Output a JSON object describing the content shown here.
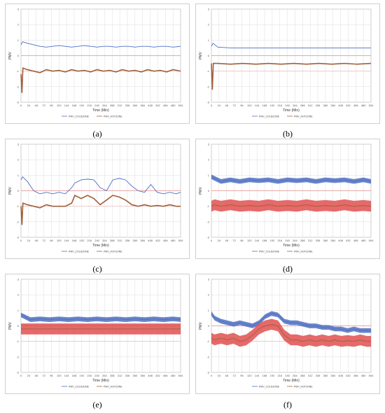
{
  "panels": [
    {
      "caption": "(a)"
    },
    {
      "caption": "(b)"
    },
    {
      "caption": "(c)"
    },
    {
      "caption": "(d)"
    },
    {
      "caption": "(e)"
    },
    {
      "caption": "(f)"
    }
  ],
  "colors": {
    "cold": "#4f6fc2",
    "hot": "#a0603a",
    "hot_band": "#e05050",
    "zero_line": "#e89090",
    "grid": "#dcdcdc"
  },
  "chart_data": [
    {
      "type": "line",
      "panel": "a",
      "xlabel": "Time (Min)",
      "ylabel": "PMV",
      "yticks": [
        3,
        2,
        1,
        0,
        -1,
        -2,
        -3
      ],
      "ylim": [
        -3,
        3
      ],
      "xlim": [
        0,
        504
      ],
      "xticks": [
        0,
        24,
        48,
        72,
        96,
        120,
        144,
        168,
        192,
        216,
        240,
        264,
        288,
        312,
        336,
        360,
        384,
        408,
        432,
        456,
        480,
        504
      ],
      "series": [
        {
          "name": "PMV_COLDZONE",
          "x": [
            0,
            5,
            20,
            40,
            60,
            80,
            100,
            120,
            140,
            160,
            180,
            200,
            220,
            240,
            260,
            280,
            300,
            320,
            340,
            360,
            380,
            400,
            420,
            440,
            460,
            480,
            504
          ],
          "y": [
            0.7,
            0.9,
            0.8,
            0.7,
            0.6,
            0.55,
            0.6,
            0.65,
            0.6,
            0.55,
            0.6,
            0.65,
            0.6,
            0.55,
            0.6,
            0.6,
            0.55,
            0.6,
            0.6,
            0.55,
            0.6,
            0.6,
            0.55,
            0.6,
            0.6,
            0.55,
            0.6
          ]
        },
        {
          "name": "PMV_HOTZONE",
          "x": [
            0,
            3,
            6,
            20,
            40,
            60,
            80,
            100,
            120,
            140,
            160,
            180,
            200,
            220,
            240,
            260,
            280,
            300,
            320,
            340,
            360,
            380,
            400,
            420,
            440,
            460,
            480,
            504
          ],
          "y": [
            -1.2,
            -2.4,
            -0.8,
            -0.9,
            -1.0,
            -1.1,
            -0.9,
            -1.0,
            -0.95,
            -1.05,
            -0.9,
            -1.0,
            -0.95,
            -1.05,
            -0.9,
            -1.0,
            -0.95,
            -1.05,
            -0.9,
            -1.0,
            -0.95,
            -1.05,
            -0.9,
            -1.0,
            -0.95,
            -1.05,
            -0.9,
            -1.0
          ]
        }
      ]
    },
    {
      "type": "line",
      "panel": "b",
      "xlabel": "Time (Min)",
      "ylabel": "PMV",
      "yticks": [
        3,
        2,
        1,
        0,
        -1,
        -2,
        -3
      ],
      "ylim": [
        -3,
        3
      ],
      "xlim": [
        0,
        504
      ],
      "xticks": [
        0,
        24,
        48,
        72,
        96,
        120,
        144,
        168,
        192,
        216,
        240,
        264,
        288,
        312,
        336,
        360,
        384,
        408,
        432,
        456,
        480,
        504
      ],
      "series": [
        {
          "name": "PMV_COLDZONE",
          "x": [
            0,
            5,
            20,
            60,
            100,
            140,
            180,
            220,
            260,
            300,
            340,
            380,
            420,
            460,
            504
          ],
          "y": [
            0.6,
            0.8,
            0.55,
            0.5,
            0.5,
            0.5,
            0.5,
            0.5,
            0.5,
            0.5,
            0.5,
            0.5,
            0.5,
            0.5,
            0.5
          ]
        },
        {
          "name": "PMV_HOTZONE",
          "x": [
            0,
            3,
            6,
            20,
            60,
            100,
            140,
            180,
            220,
            260,
            300,
            340,
            380,
            420,
            460,
            504
          ],
          "y": [
            -0.5,
            -2.2,
            -0.5,
            -0.5,
            -0.55,
            -0.5,
            -0.55,
            -0.5,
            -0.55,
            -0.5,
            -0.55,
            -0.5,
            -0.55,
            -0.5,
            -0.55,
            -0.5
          ]
        }
      ]
    },
    {
      "type": "line",
      "panel": "c",
      "xlabel": "Time (Min)",
      "ylabel": "PMV",
      "yticks": [
        3,
        2,
        1,
        0,
        -1,
        -2,
        -3
      ],
      "ylim": [
        -3,
        3
      ],
      "xlim": [
        0,
        504
      ],
      "xticks": [
        0,
        24,
        48,
        72,
        96,
        120,
        144,
        168,
        192,
        216,
        240,
        264,
        288,
        312,
        336,
        360,
        384,
        408,
        432,
        456,
        480,
        504
      ],
      "series": [
        {
          "name": "PMV_COLDZONE",
          "x": [
            0,
            5,
            20,
            40,
            60,
            80,
            100,
            120,
            140,
            160,
            170,
            190,
            210,
            230,
            250,
            270,
            290,
            310,
            330,
            350,
            370,
            390,
            410,
            430,
            450,
            470,
            490,
            504
          ],
          "y": [
            0.7,
            0.9,
            0.6,
            0.0,
            -0.2,
            -0.1,
            -0.2,
            -0.1,
            -0.2,
            0.2,
            0.5,
            0.7,
            0.75,
            0.7,
            0.2,
            0.0,
            0.7,
            0.8,
            0.7,
            0.3,
            0.0,
            -0.1,
            0.4,
            -0.1,
            -0.2,
            -0.1,
            -0.2,
            -0.1
          ]
        },
        {
          "name": "PMV_HOTZONE",
          "x": [
            0,
            3,
            6,
            20,
            40,
            60,
            80,
            100,
            120,
            140,
            160,
            170,
            190,
            210,
            230,
            250,
            270,
            290,
            310,
            330,
            350,
            370,
            390,
            410,
            430,
            450,
            470,
            490,
            504
          ],
          "y": [
            -1.0,
            -2.2,
            -0.8,
            -0.9,
            -1.0,
            -1.1,
            -0.9,
            -1.0,
            -1.0,
            -1.0,
            -0.8,
            -0.3,
            -0.5,
            -0.3,
            -0.5,
            -0.9,
            -0.6,
            -0.3,
            -0.4,
            -0.6,
            -0.9,
            -1.0,
            -0.9,
            -1.0,
            -0.95,
            -1.0,
            -0.9,
            -1.0,
            -1.0
          ]
        }
      ]
    },
    {
      "type": "line",
      "panel": "d",
      "xlabel": "Time (Min)",
      "ylabel": "PMV",
      "yticks": [
        3,
        2,
        1,
        0,
        -1,
        -2,
        -3
      ],
      "ylim": [
        -3,
        3
      ],
      "xlim": [
        0,
        504
      ],
      "xticks": [
        0,
        24,
        48,
        72,
        96,
        120,
        144,
        168,
        192,
        216,
        240,
        264,
        288,
        312,
        336,
        360,
        384,
        408,
        432,
        456,
        480,
        504
      ],
      "series": [
        {
          "name": "PMV_COLDZONE",
          "x": [
            0,
            10,
            30,
            60,
            90,
            120,
            150,
            180,
            210,
            240,
            270,
            300,
            330,
            360,
            390,
            420,
            450,
            480,
            504
          ],
          "y": [
            0.9,
            0.8,
            0.6,
            0.7,
            0.6,
            0.7,
            0.65,
            0.7,
            0.6,
            0.7,
            0.65,
            0.7,
            0.6,
            0.7,
            0.65,
            0.7,
            0.6,
            0.7,
            0.6
          ]
        },
        {
          "name": "PMV_HOTZONE",
          "x": [
            0,
            10,
            30,
            60,
            90,
            120,
            150,
            180,
            210,
            240,
            270,
            300,
            330,
            360,
            390,
            420,
            450,
            480,
            504
          ],
          "y": [
            -1.0,
            -0.9,
            -1.0,
            -0.9,
            -1.0,
            -0.95,
            -1.0,
            -0.9,
            -1.0,
            -0.95,
            -1.0,
            -0.9,
            -1.0,
            -0.95,
            -1.0,
            -0.9,
            -1.0,
            -0.95,
            -1.0
          ]
        }
      ]
    },
    {
      "type": "line",
      "panel": "e",
      "xlabel": "Time (Min)",
      "ylabel": "PMV",
      "yticks": [
        3,
        2,
        1,
        0,
        -1,
        -2,
        -3
      ],
      "ylim": [
        -3,
        3
      ],
      "xlim": [
        0,
        504
      ],
      "xticks": [
        0,
        24,
        48,
        72,
        96,
        120,
        144,
        168,
        192,
        216,
        240,
        264,
        288,
        312,
        336,
        360,
        384,
        408,
        432,
        456,
        480,
        504
      ],
      "series": [
        {
          "name": "PMV_COLDZONE",
          "x": [
            0,
            10,
            30,
            60,
            90,
            120,
            150,
            180,
            210,
            240,
            270,
            300,
            330,
            360,
            390,
            420,
            450,
            480,
            504
          ],
          "y": [
            0.7,
            0.6,
            0.4,
            0.45,
            0.4,
            0.45,
            0.4,
            0.45,
            0.4,
            0.45,
            0.4,
            0.45,
            0.4,
            0.45,
            0.4,
            0.45,
            0.4,
            0.45,
            0.4
          ]
        },
        {
          "name": "PMV_HOTZONE",
          "x": [
            0,
            10,
            30,
            60,
            90,
            120,
            150,
            180,
            210,
            240,
            270,
            300,
            330,
            360,
            390,
            420,
            450,
            480,
            504
          ],
          "y": [
            -0.2,
            -0.2,
            -0.2,
            -0.2,
            -0.2,
            -0.2,
            -0.2,
            -0.2,
            -0.2,
            -0.2,
            -0.2,
            -0.2,
            -0.2,
            -0.2,
            -0.2,
            -0.2,
            -0.2,
            -0.2,
            -0.2
          ]
        }
      ]
    },
    {
      "type": "line",
      "panel": "f",
      "xlabel": "Time (Min)",
      "ylabel": "PMV",
      "yticks": [
        3,
        2,
        1,
        0,
        -1,
        -2,
        -3
      ],
      "ylim": [
        -3,
        3
      ],
      "xlim": [
        0,
        504
      ],
      "xticks": [
        0,
        24,
        48,
        72,
        96,
        120,
        144,
        168,
        192,
        216,
        240,
        264,
        288,
        312,
        336,
        360,
        384,
        408,
        432,
        456,
        480,
        504
      ],
      "series": [
        {
          "name": "PMV_COLDZONE",
          "x": [
            0,
            10,
            30,
            50,
            70,
            90,
            110,
            130,
            150,
            170,
            190,
            210,
            230,
            250,
            270,
            290,
            310,
            330,
            350,
            370,
            390,
            410,
            430,
            450,
            470,
            490,
            504
          ],
          "y": [
            0.8,
            0.5,
            0.3,
            0.2,
            0.1,
            0.2,
            0.1,
            0.0,
            0.2,
            0.6,
            0.8,
            0.7,
            0.3,
            0.2,
            0.2,
            0.1,
            0.0,
            0.0,
            -0.1,
            -0.1,
            -0.2,
            -0.2,
            -0.3,
            -0.2,
            -0.3,
            -0.3,
            -0.3
          ]
        },
        {
          "name": "PMV_HOTZONE",
          "x": [
            0,
            10,
            30,
            50,
            70,
            90,
            110,
            130,
            150,
            170,
            190,
            210,
            230,
            250,
            270,
            290,
            310,
            330,
            350,
            370,
            390,
            410,
            430,
            450,
            470,
            490,
            504
          ],
          "y": [
            -0.8,
            -0.9,
            -0.8,
            -0.9,
            -0.8,
            -1.0,
            -0.9,
            -0.6,
            -0.2,
            0.0,
            0.1,
            0.0,
            -0.6,
            -0.9,
            -0.9,
            -1.0,
            -0.9,
            -1.0,
            -0.9,
            -1.0,
            -0.9,
            -1.0,
            -0.95,
            -1.0,
            -0.9,
            -1.0,
            -1.0
          ]
        }
      ]
    }
  ]
}
